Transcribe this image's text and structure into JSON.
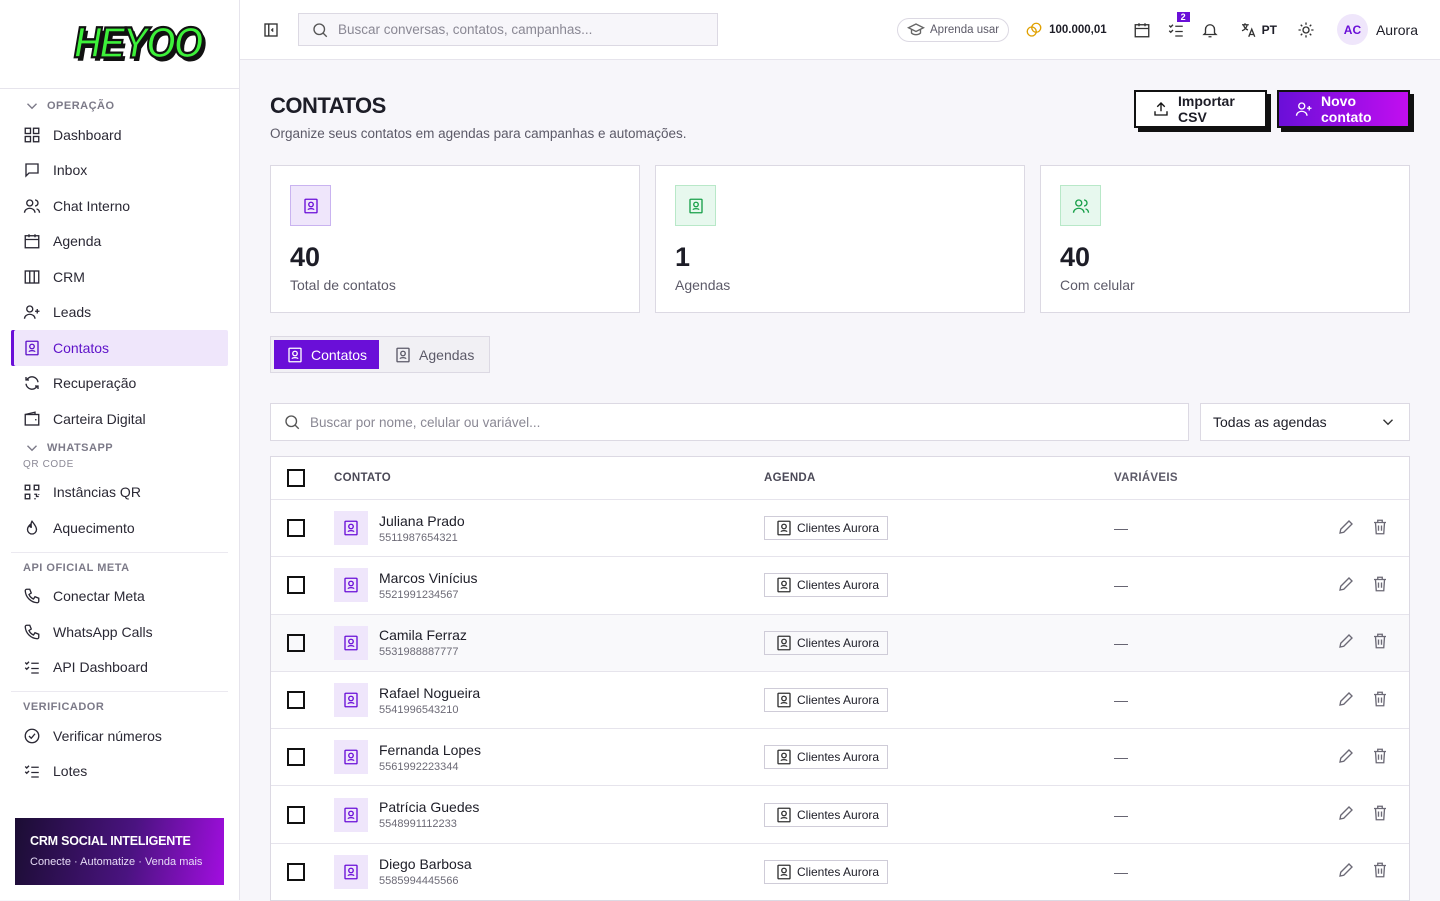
{
  "sidebar": {
    "logo": "HEYOO",
    "sections": [
      {
        "title": "OPERAÇÃO",
        "items": [
          "Dashboard",
          "Inbox",
          "Chat Interno",
          "Agenda",
          "CRM",
          "Leads",
          "Contatos",
          "Recuperação",
          "Carteira Digital"
        ]
      },
      {
        "title": "WHATSAPP",
        "subtitle": "QR CODE",
        "items": [
          "Instâncias QR",
          "Aquecimento"
        ]
      },
      {
        "title": "API OFICIAL META",
        "items": [
          "Conectar Meta",
          "WhatsApp Calls",
          "API Dashboard"
        ]
      },
      {
        "title": "VERIFICADOR",
        "items": [
          "Verificar números",
          "Lotes"
        ]
      }
    ],
    "promo": {
      "title": "CRM SOCIAL INTELIGENTE",
      "subtitle": "Conecte · Automatize · Venda mais"
    }
  },
  "topbar": {
    "search_placeholder": "Buscar conversas, contatos, campanhas...",
    "learn": "Aprenda usar",
    "balance": "100.000,01",
    "tasks_badge": "2",
    "language": "PT",
    "avatar": "AC",
    "user": "Aurora"
  },
  "header": {
    "title": "CONTATOS",
    "subtitle": "Organize seus contatos em agendas para campanhas e automações.",
    "import_button": "Importar CSV",
    "new_button": "Novo contato"
  },
  "stats": [
    {
      "value": 40,
      "label": "Total de contatos"
    },
    {
      "value": 1,
      "label": "Agendas"
    },
    {
      "value": 40,
      "label": "Com celular"
    }
  ],
  "tabs": [
    "Contatos",
    "Agendas"
  ],
  "filters": {
    "search_placeholder": "Buscar por nome, celular ou variável...",
    "agenda_select": "Todas as agendas"
  },
  "table": {
    "columns": [
      "CONTATO",
      "AGENDA",
      "VARIÁVEIS"
    ],
    "rows": [
      {
        "name": "Juliana Prado",
        "phone": "5511987654321",
        "agenda": "Clientes Aurora",
        "variables": "—"
      },
      {
        "name": "Marcos Vinícius",
        "phone": "5521991234567",
        "agenda": "Clientes Aurora",
        "variables": "—"
      },
      {
        "name": "Camila Ferraz",
        "phone": "5531988887777",
        "agenda": "Clientes Aurora",
        "variables": "—"
      },
      {
        "name": "Rafael Nogueira",
        "phone": "5541996543210",
        "agenda": "Clientes Aurora",
        "variables": "—"
      },
      {
        "name": "Fernanda Lopes",
        "phone": "5561992223344",
        "agenda": "Clientes Aurora",
        "variables": "—"
      },
      {
        "name": "Patrícia Guedes",
        "phone": "5548991112233",
        "agenda": "Clientes Aurora",
        "variables": "—"
      },
      {
        "name": "Diego Barbosa",
        "phone": "5585994445566",
        "agenda": "Clientes Aurora",
        "variables": "—"
      }
    ]
  }
}
